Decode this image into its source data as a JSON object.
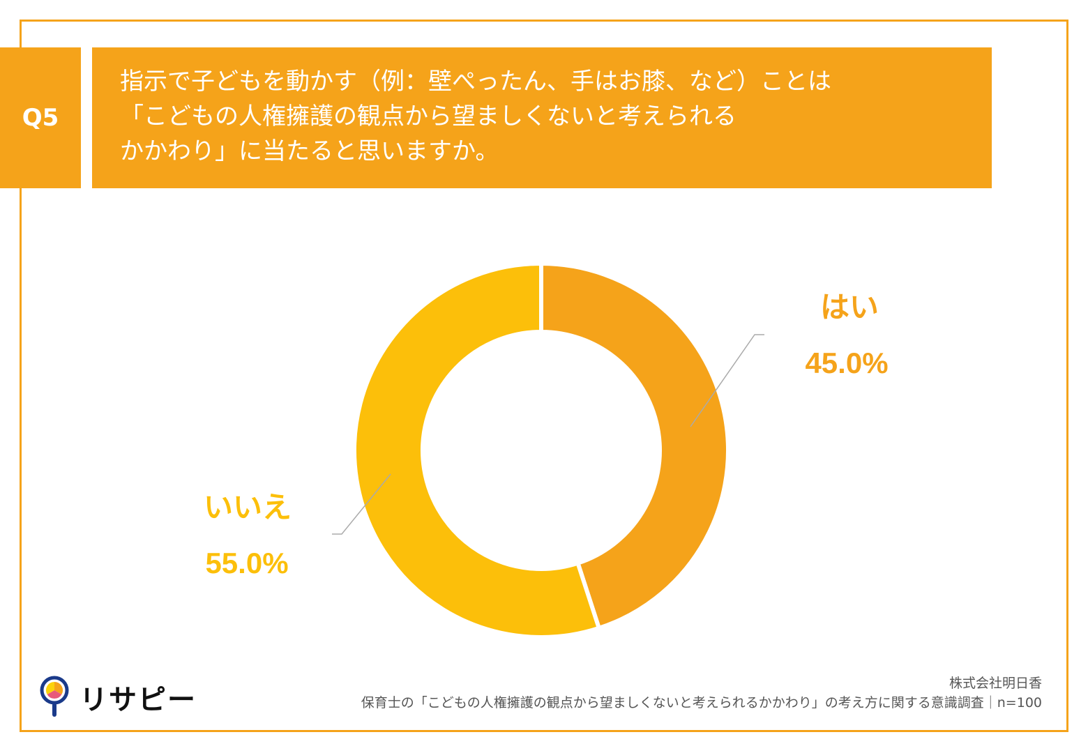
{
  "question": {
    "number": "Q5",
    "lines": [
      "指示で子どもを動かす（例：壁ぺったん、手はお膝、など）ことは",
      "「こどもの人権擁護の観点から望ましくないと考えられる",
      "かかわり」に当たると思いますか。"
    ]
  },
  "chart_data": {
    "type": "pie",
    "donut": true,
    "slices": [
      {
        "label": "はい",
        "value": 45.0,
        "value_label": "45.0%",
        "color": "#F5A31A"
      },
      {
        "label": "いいえ",
        "value": 55.0,
        "value_label": "55.0%",
        "color": "#FCBF0A"
      }
    ]
  },
  "logo": {
    "text": "リサピー",
    "icon": "pin-pie-icon"
  },
  "credit": {
    "company": "株式会社明日香",
    "survey": "保育士の「こどもの人権擁護の観点から望ましくないと考えられるかかわり」の考え方に関する意識調査｜n=100"
  },
  "colors": {
    "accent": "#F5A31A",
    "secondary": "#FCBF0A"
  }
}
